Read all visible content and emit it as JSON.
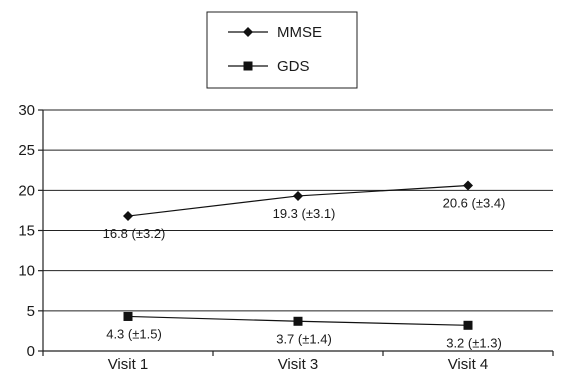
{
  "chart_data": {
    "type": "line",
    "categories": [
      "Visit 1",
      "Visit 3",
      "Visit 4"
    ],
    "ylim": [
      0,
      30
    ],
    "yticks": [
      0,
      5,
      10,
      15,
      20,
      25,
      30
    ],
    "grid": true,
    "legend_position": "top-center",
    "series": [
      {
        "name": "MMSE",
        "marker": "diamond",
        "color": "#111111",
        "values": [
          16.8,
          19.3,
          20.6
        ],
        "labels": [
          "16.8 (±3.2)",
          "19.3 (±3.1)",
          "20.6 (±3.4)"
        ]
      },
      {
        "name": "GDS",
        "marker": "square",
        "color": "#111111",
        "values": [
          4.3,
          3.7,
          3.2
        ],
        "labels": [
          "4.3 (±1.5)",
          "3.7 (±1.4)",
          "3.2 (±1.3)"
        ]
      }
    ]
  }
}
